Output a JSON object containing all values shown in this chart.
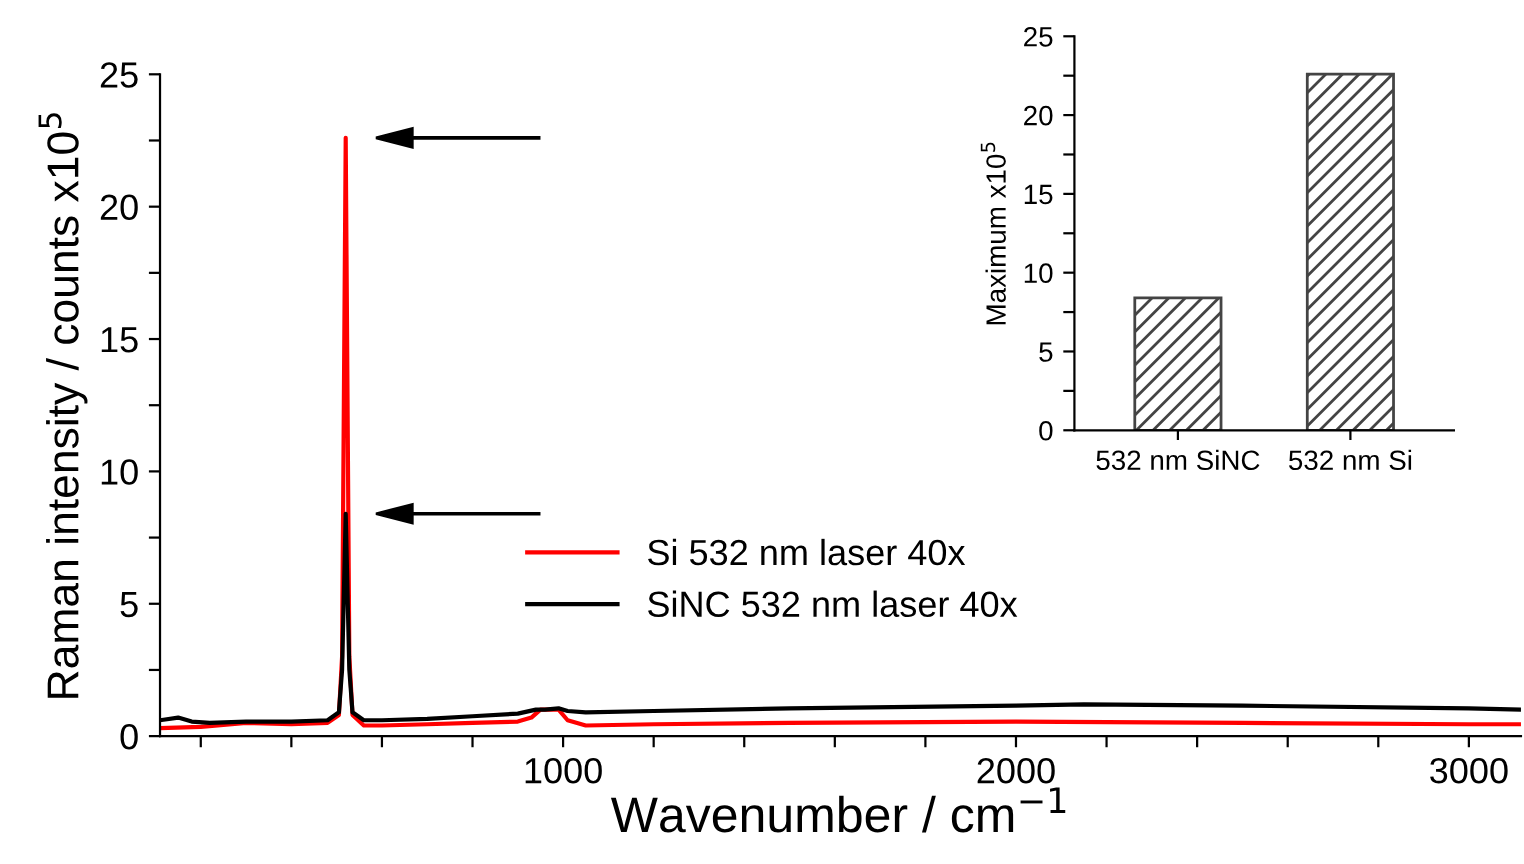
{
  "chart_data": [
    {
      "type": "line",
      "xlabel": "Wavenumber / cm$^{−1}$",
      "ylabel": "Raman intensity / counts x10$^{5}$",
      "xlim": [
        110,
        3115
      ],
      "ylim": [
        0,
        25
      ],
      "xticks": [
        {
          "value": 200,
          "label": null
        },
        {
          "value": 400,
          "label": null
        },
        {
          "value": 600,
          "label": null
        },
        {
          "value": 800,
          "label": null
        },
        1000,
        {
          "value": 1200,
          "label": null
        },
        {
          "value": 1400,
          "label": null
        },
        {
          "value": 1600,
          "label": null
        },
        {
          "value": 1800,
          "label": null
        },
        2000,
        {
          "value": 2200,
          "label": null
        },
        {
          "value": 2400,
          "label": null
        },
        {
          "value": 2600,
          "label": null
        },
        {
          "value": 2800,
          "label": null
        },
        3000
      ],
      "yticks": [
        0,
        {
          "value": 2.5,
          "label": null
        },
        5,
        {
          "value": 7.5,
          "label": null
        },
        10,
        {
          "value": 12.5,
          "label": null
        },
        15,
        {
          "value": 17.5,
          "label": null
        },
        20,
        {
          "value": 22.5,
          "label": null
        },
        25
      ],
      "legend": "bottom",
      "grid": false,
      "series": [
        {
          "name": "Si 532 nm laser 40x",
          "color": "#ff0000",
          "x": [
            110,
            200,
            300,
            400,
            480,
            505,
            512,
            520,
            528,
            535,
            560,
            600,
            700,
            800,
            900,
            930,
            950,
            990,
            1010,
            1050,
            1200,
            1500,
            2000,
            2500,
            3000,
            3115
          ],
          "values": [
            0.3,
            0.35,
            0.5,
            0.45,
            0.5,
            0.8,
            3.0,
            22.6,
            3.0,
            0.8,
            0.4,
            0.4,
            0.45,
            0.5,
            0.55,
            0.7,
            1.0,
            1.0,
            0.6,
            0.4,
            0.45,
            0.5,
            0.55,
            0.5,
            0.45,
            0.45
          ]
        },
        {
          "name": "SiNC 532 nm laser 40x",
          "color": "#000000",
          "x": [
            110,
            150,
            180,
            220,
            300,
            400,
            480,
            505,
            512,
            520,
            528,
            535,
            560,
            600,
            700,
            800,
            900,
            940,
            960,
            990,
            1010,
            1050,
            1200,
            1500,
            2000,
            2150,
            2500,
            3000,
            3115
          ],
          "values": [
            0.6,
            0.7,
            0.55,
            0.5,
            0.55,
            0.55,
            0.6,
            0.9,
            2.5,
            8.4,
            2.5,
            0.9,
            0.6,
            0.6,
            0.65,
            0.75,
            0.85,
            1.0,
            1.0,
            1.05,
            0.95,
            0.9,
            0.95,
            1.05,
            1.15,
            1.2,
            1.15,
            1.05,
            1.0
          ]
        }
      ]
    },
    {
      "type": "bar",
      "ylabel": "Maximum x10$^{5}$",
      "categories": [
        "532 nm SiNC",
        "532 nm Si"
      ],
      "values": [
        8.4,
        22.6
      ],
      "colors": [
        "#444444",
        "#444444"
      ],
      "ylim": [
        0,
        25
      ],
      "yticks": [
        0,
        {
          "value": 2.5,
          "label": null
        },
        5,
        {
          "value": 7.5,
          "label": null
        },
        10,
        {
          "value": 12.5,
          "label": null
        },
        15,
        {
          "value": 17.5,
          "label": null
        },
        20,
        {
          "value": 22.5,
          "label": null
        },
        25
      ],
      "grid": false
    }
  ]
}
